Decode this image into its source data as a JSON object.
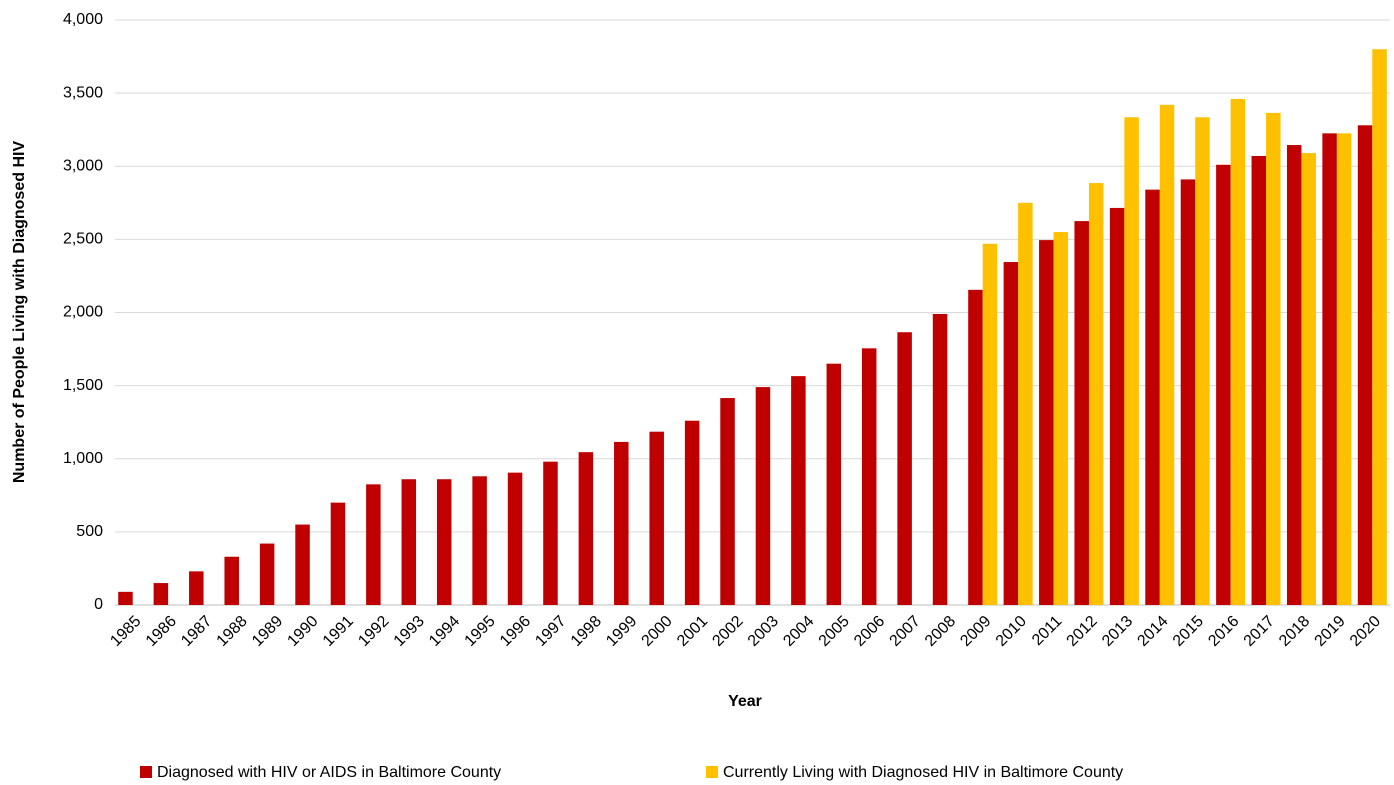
{
  "chart_data": {
    "type": "bar",
    "xlabel": "Year",
    "ylabel": "Number of People Living with Diagnosed HIV",
    "categories": [
      "1985",
      "1986",
      "1987",
      "1988",
      "1989",
      "1990",
      "1991",
      "1992",
      "1993",
      "1994",
      "1995",
      "1996",
      "1997",
      "1998",
      "1999",
      "2000",
      "2001",
      "2002",
      "2003",
      "2004",
      "2005",
      "2006",
      "2007",
      "2008",
      "2009",
      "2010",
      "2011",
      "2012",
      "2013",
      "2014",
      "2015",
      "2016",
      "2017",
      "2018",
      "2019",
      "2020"
    ],
    "series": [
      {
        "name": "Diagnosed with HIV or AIDS in Baltimore County",
        "color": "#c00000",
        "values": [
          90,
          150,
          230,
          330,
          420,
          550,
          700,
          825,
          860,
          860,
          880,
          905,
          980,
          1045,
          1115,
          1185,
          1260,
          1415,
          1490,
          1565,
          1650,
          1755,
          1865,
          1990,
          2155,
          2345,
          2495,
          2625,
          2715,
          2840,
          2910,
          3010,
          3070,
          3145,
          3225,
          3280
        ]
      },
      {
        "name": "Currently Living with Diagnosed HIV in Baltimore County",
        "color": "#ffc000",
        "values": [
          null,
          null,
          null,
          null,
          null,
          null,
          null,
          null,
          null,
          null,
          null,
          null,
          null,
          null,
          null,
          null,
          null,
          null,
          null,
          null,
          null,
          null,
          null,
          null,
          2470,
          2750,
          2550,
          2885,
          3335,
          3420,
          3335,
          3460,
          3365,
          3090,
          3225,
          3800
        ]
      }
    ],
    "ylim": [
      0,
      4000
    ],
    "yticks": [
      0,
      500,
      {
        "value": 1000,
        "label": "1,000"
      },
      {
        "value": 1500,
        "label": "1,500"
      },
      {
        "value": 2000,
        "label": "2,000"
      },
      {
        "value": 2500,
        "label": "2,500"
      },
      {
        "value": 3000,
        "label": "3,000"
      },
      {
        "value": 3500,
        "label": "3,500"
      },
      {
        "value": 4000,
        "label": "4,000"
      }
    ],
    "grid": true,
    "legend": "bottom"
  }
}
